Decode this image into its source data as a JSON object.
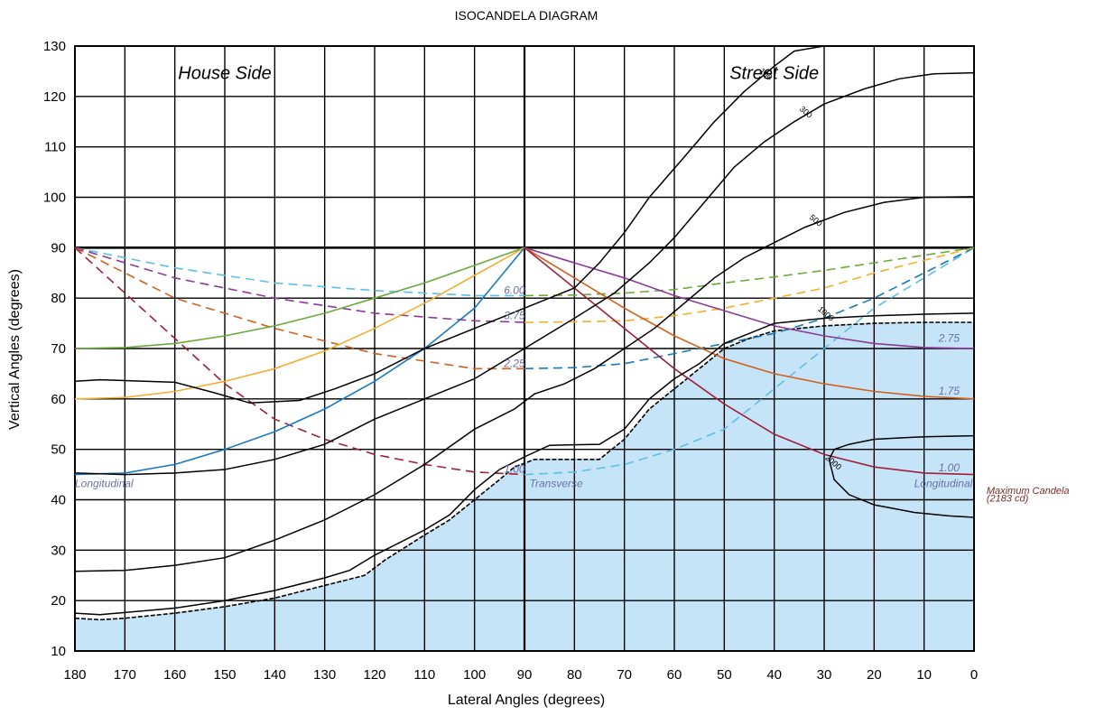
{
  "chart_data": {
    "type": "line",
    "title": "ISOCANDELA DIAGRAM",
    "xlabel": "Lateral Angles (degrees)",
    "ylabel": "Vertical Angles (degrees)",
    "xlim": [
      180,
      0
    ],
    "ylim": [
      10,
      130
    ],
    "x_ticks": [
      "180",
      "170",
      "160",
      "150",
      "140",
      "130",
      "120",
      "110",
      "100",
      "90",
      "80",
      "70",
      "60",
      "50",
      "40",
      "30",
      "20",
      "10",
      "0"
    ],
    "y_ticks": [
      "130",
      "120",
      "110",
      "100",
      "90",
      "80",
      "70",
      "60",
      "50",
      "40",
      "30",
      "20",
      "10"
    ],
    "grid": true,
    "side_labels": {
      "house": "House Side",
      "street": "Street Side"
    },
    "max_candela": {
      "line1": "Maximum Candela",
      "line2": "(2183 cd)",
      "x": 29,
      "y": 48
    },
    "shaded_color": "#c6e4f8",
    "shaded_boundary": [
      [
        180,
        16.5
      ],
      [
        175,
        16.2
      ],
      [
        170,
        16.5
      ],
      [
        160,
        17.5
      ],
      [
        150,
        18.8
      ],
      [
        140,
        20.5
      ],
      [
        130,
        23
      ],
      [
        122,
        25
      ],
      [
        118,
        28
      ],
      [
        110,
        33
      ],
      [
        105,
        36
      ],
      [
        100,
        40
      ],
      [
        95,
        44
      ],
      [
        92,
        46.5
      ],
      [
        88,
        48
      ],
      [
        75,
        48
      ],
      [
        70,
        52
      ],
      [
        65,
        58
      ],
      [
        60,
        62
      ],
      [
        55,
        66
      ],
      [
        50,
        70
      ],
      [
        45,
        72
      ],
      [
        40,
        73.5
      ],
      [
        30,
        74.5
      ],
      [
        20,
        75
      ],
      [
        10,
        75.2
      ],
      [
        0,
        75.2
      ]
    ],
    "isocandela": [
      {
        "label": "100",
        "points": [
          [
            180,
            63.5
          ],
          [
            175,
            63.8
          ],
          [
            160,
            63.3
          ],
          [
            152,
            61.2
          ],
          [
            145,
            59.2
          ],
          [
            135,
            59.7
          ],
          [
            128,
            62
          ],
          [
            120,
            65
          ],
          [
            110,
            70
          ],
          [
            100,
            74
          ],
          [
            90,
            78
          ],
          [
            80,
            82
          ],
          [
            75,
            87
          ],
          [
            70,
            93
          ],
          [
            65,
            100
          ],
          [
            58,
            108
          ],
          [
            52,
            115
          ],
          [
            46,
            121
          ],
          [
            40,
            126
          ],
          [
            36,
            129
          ],
          [
            30,
            130
          ]
        ],
        "label_at": [
          42,
          124
        ]
      },
      {
        "label": "300",
        "points": [
          [
            180,
            45.3
          ],
          [
            170,
            45
          ],
          [
            160,
            45.3
          ],
          [
            150,
            46
          ],
          [
            140,
            48
          ],
          [
            130,
            51
          ],
          [
            120,
            56
          ],
          [
            110,
            60
          ],
          [
            100,
            64
          ],
          [
            90,
            70
          ],
          [
            80,
            76
          ],
          [
            72,
            81
          ],
          [
            65,
            87
          ],
          [
            60,
            92
          ],
          [
            54,
            99
          ],
          [
            48,
            106
          ],
          [
            42,
            111
          ],
          [
            36,
            115
          ],
          [
            30,
            118.5
          ],
          [
            22,
            121.5
          ],
          [
            15,
            123.5
          ],
          [
            8,
            124.5
          ],
          [
            0,
            124.7
          ]
        ],
        "label_at": [
          34,
          116.5
        ]
      },
      {
        "label": "500",
        "points": [
          [
            180,
            25.8
          ],
          [
            170,
            26
          ],
          [
            160,
            27
          ],
          [
            150,
            28.5
          ],
          [
            140,
            32
          ],
          [
            130,
            36
          ],
          [
            120,
            41
          ],
          [
            110,
            47
          ],
          [
            100,
            54
          ],
          [
            92,
            58
          ],
          [
            88,
            61
          ],
          [
            82,
            63
          ],
          [
            76,
            66
          ],
          [
            70,
            70
          ],
          [
            64,
            74
          ],
          [
            58,
            79
          ],
          [
            52,
            84
          ],
          [
            46,
            88
          ],
          [
            40,
            91
          ],
          [
            34,
            94
          ],
          [
            26,
            97
          ],
          [
            18,
            99
          ],
          [
            10,
            100
          ],
          [
            0,
            100.1
          ]
        ],
        "label_at": [
          32,
          95
        ]
      },
      {
        "label": "1000",
        "points": [
          [
            180,
            17.5
          ],
          [
            175,
            17.2
          ],
          [
            160,
            18.5
          ],
          [
            150,
            20
          ],
          [
            140,
            22
          ],
          [
            130,
            24.5
          ],
          [
            125,
            26
          ],
          [
            120,
            29
          ],
          [
            110,
            34
          ],
          [
            105,
            37
          ],
          [
            100,
            42
          ],
          [
            95,
            46
          ],
          [
            90,
            48.5
          ],
          [
            85,
            50.8
          ],
          [
            75,
            51
          ],
          [
            70,
            54
          ],
          [
            65,
            60
          ],
          [
            60,
            64
          ],
          [
            55,
            67
          ],
          [
            50,
            71
          ],
          [
            45,
            73
          ],
          [
            40,
            75
          ],
          [
            30,
            76
          ],
          [
            20,
            76.5
          ],
          [
            10,
            76.8
          ],
          [
            0,
            77
          ]
        ],
        "label_at": [
          30,
          76.5
        ]
      },
      {
        "label": "2000",
        "points": [
          [
            0,
            36.5
          ],
          [
            5,
            36.8
          ],
          [
            12,
            37.5
          ],
          [
            20,
            39
          ],
          [
            25,
            41
          ],
          [
            28,
            44
          ],
          [
            29,
            48
          ],
          [
            28,
            50
          ],
          [
            25,
            51
          ],
          [
            20,
            52
          ],
          [
            10,
            52.5
          ],
          [
            0,
            52.7
          ]
        ],
        "label_at": [
          28.5,
          47
        ]
      }
    ],
    "vertical_lines": [
      {
        "label": "6.00",
        "color": "#5bc0e8",
        "dashed": true,
        "side": "house",
        "points": [
          [
            180,
            90
          ],
          [
            160,
            86
          ],
          [
            140,
            83
          ],
          [
            120,
            81.5
          ],
          [
            100,
            80.5
          ],
          [
            90,
            80.5
          ]
        ],
        "label_at": [
          92,
          80.5
        ]
      },
      {
        "label": "3.75",
        "color": "#8b3a96",
        "dashed": true,
        "side": "house",
        "points": [
          [
            180,
            90
          ],
          [
            160,
            84
          ],
          [
            140,
            80
          ],
          [
            120,
            77
          ],
          [
            100,
            75.5
          ],
          [
            90,
            75.2
          ]
        ],
        "label_at": [
          92,
          75.5
        ]
      },
      {
        "label": "2.25",
        "color": "#d3601a",
        "dashed": true,
        "side": "house",
        "points": [
          [
            180,
            90
          ],
          [
            160,
            80
          ],
          [
            140,
            74
          ],
          [
            120,
            69
          ],
          [
            100,
            66
          ],
          [
            90,
            66
          ]
        ],
        "label_at": [
          92,
          66
        ]
      },
      {
        "label": "1.00",
        "color": "#a0203a",
        "dashed": true,
        "side": "house",
        "points": [
          [
            180,
            90
          ],
          [
            170,
            81
          ],
          [
            160,
            72
          ],
          [
            150,
            63
          ],
          [
            140,
            56
          ],
          [
            130,
            52
          ],
          [
            120,
            49
          ],
          [
            110,
            47
          ],
          [
            100,
            45.5
          ],
          [
            90,
            45
          ]
        ],
        "label_at": [
          92,
          45
        ]
      },
      {
        "label": "",
        "color": "#5bc0e8",
        "dashed": true,
        "side": "street",
        "points": [
          [
            90,
            45
          ],
          [
            80,
            45.5
          ],
          [
            70,
            47
          ],
          [
            60,
            50
          ],
          [
            50,
            54
          ],
          [
            40,
            62
          ],
          [
            30,
            70
          ],
          [
            20,
            78
          ],
          [
            10,
            84
          ],
          [
            0,
            90
          ]
        ]
      },
      {
        "label": "",
        "color": "#1a7abf",
        "dashed": true,
        "side": "street",
        "points": [
          [
            90,
            66
          ],
          [
            80,
            66.2
          ],
          [
            70,
            67
          ],
          [
            60,
            69
          ],
          [
            50,
            71
          ],
          [
            40,
            73
          ],
          [
            30,
            76
          ],
          [
            20,
            80
          ],
          [
            10,
            85
          ],
          [
            0,
            90
          ]
        ]
      },
      {
        "label": "",
        "color": "#f0b030",
        "dashed": true,
        "side": "street",
        "points": [
          [
            90,
            75.2
          ],
          [
            80,
            75.3
          ],
          [
            70,
            75.5
          ],
          [
            60,
            76.5
          ],
          [
            50,
            78
          ],
          [
            40,
            80
          ],
          [
            30,
            82
          ],
          [
            20,
            85
          ],
          [
            10,
            87.5
          ],
          [
            0,
            90
          ]
        ]
      },
      {
        "label": "",
        "color": "#6aaa3a",
        "dashed": true,
        "side": "street",
        "points": [
          [
            90,
            80.5
          ],
          [
            80,
            80.6
          ],
          [
            70,
            81
          ],
          [
            60,
            81.7
          ],
          [
            50,
            83
          ],
          [
            40,
            84.2
          ],
          [
            30,
            85.5
          ],
          [
            20,
            87
          ],
          [
            10,
            88.5
          ],
          [
            0,
            90
          ]
        ]
      },
      {
        "label": "",
        "color": "#6aaa3a",
        "dashed": false,
        "side": "house",
        "points": [
          [
            180,
            70
          ],
          [
            170,
            70.2
          ],
          [
            160,
            71
          ],
          [
            150,
            72.5
          ],
          [
            140,
            74.5
          ],
          [
            130,
            77
          ],
          [
            120,
            80
          ],
          [
            110,
            83
          ],
          [
            100,
            86.5
          ],
          [
            90,
            90
          ]
        ]
      },
      {
        "label": "",
        "color": "#f0b030",
        "dashed": false,
        "side": "house",
        "points": [
          [
            180,
            60
          ],
          [
            170,
            60.3
          ],
          [
            160,
            61.5
          ],
          [
            150,
            63.5
          ],
          [
            140,
            66
          ],
          [
            130,
            69.5
          ],
          [
            120,
            74
          ],
          [
            110,
            79
          ],
          [
            100,
            84.5
          ],
          [
            90,
            90
          ]
        ]
      },
      {
        "label": "",
        "color": "#1a7abf",
        "dashed": false,
        "side": "house",
        "points": [
          [
            180,
            45
          ],
          [
            170,
            45.3
          ],
          [
            160,
            47
          ],
          [
            150,
            50
          ],
          [
            140,
            53.5
          ],
          [
            130,
            58
          ],
          [
            120,
            63.5
          ],
          [
            110,
            70
          ],
          [
            100,
            78
          ],
          [
            95,
            84
          ],
          [
            90,
            90
          ]
        ]
      },
      {
        "label": "2.75",
        "color": "#8b3a96",
        "dashed": false,
        "side": "street",
        "points": [
          [
            90,
            90
          ],
          [
            80,
            87
          ],
          [
            70,
            84
          ],
          [
            60,
            80.5
          ],
          [
            50,
            77.5
          ],
          [
            40,
            74.5
          ],
          [
            30,
            72.5
          ],
          [
            20,
            71
          ],
          [
            10,
            70.2
          ],
          [
            0,
            70
          ]
        ],
        "label_at": [
          5,
          71
        ]
      },
      {
        "label": "1.75",
        "color": "#d3601a",
        "dashed": false,
        "side": "street",
        "points": [
          [
            90,
            90
          ],
          [
            80,
            84
          ],
          [
            70,
            78
          ],
          [
            60,
            72.5
          ],
          [
            50,
            68
          ],
          [
            40,
            65
          ],
          [
            30,
            63
          ],
          [
            20,
            61.5
          ],
          [
            10,
            60.5
          ],
          [
            0,
            60
          ]
        ],
        "label_at": [
          5,
          60.5
        ]
      },
      {
        "label": "1.00",
        "color": "#a0203a",
        "dashed": false,
        "side": "street",
        "points": [
          [
            90,
            90
          ],
          [
            80,
            82
          ],
          [
            70,
            74
          ],
          [
            60,
            66
          ],
          [
            50,
            59
          ],
          [
            40,
            53
          ],
          [
            30,
            49
          ],
          [
            20,
            46.5
          ],
          [
            10,
            45.3
          ],
          [
            0,
            45
          ]
        ],
        "label_at": [
          5,
          45.3
        ]
      }
    ],
    "axis_labels": [
      {
        "text": "Longitudinal",
        "x": 180,
        "y": 42.5
      },
      {
        "text": "Transverse",
        "x": 89,
        "y": 42.5
      },
      {
        "text": "Longitudinal",
        "x": 12,
        "y": 42.5
      }
    ]
  }
}
